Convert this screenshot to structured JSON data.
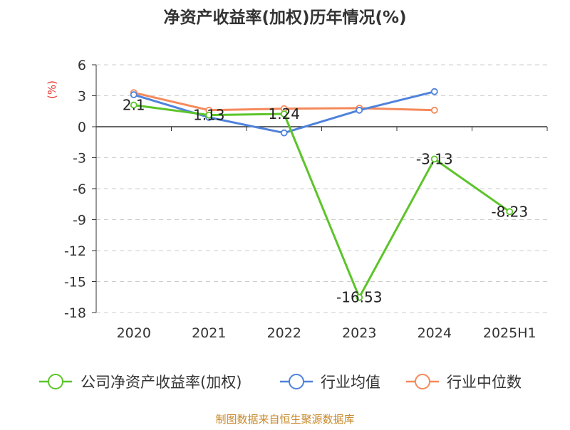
{
  "chart_data": {
    "type": "line",
    "title": "净资产收益率(加权)历年情况(%)",
    "ylabel": "(%)",
    "xlabel": "",
    "categories": [
      "2020",
      "2021",
      "2022",
      "2023",
      "2024",
      "2025H1"
    ],
    "ylim": [
      -18,
      6
    ],
    "yticks": [
      6,
      3,
      0,
      -3,
      -6,
      -9,
      -12,
      -15,
      -18
    ],
    "grid": true,
    "legend_position": "bottom",
    "series": [
      {
        "name": "公司净资产收益率(加权)",
        "color": "#5cc42a",
        "values": [
          2.1,
          1.13,
          1.24,
          -16.53,
          -3.13,
          -8.23
        ],
        "labels": [
          "2.1",
          "1.13",
          "1.24",
          "-16.53",
          "-3.13",
          "-8.23"
        ]
      },
      {
        "name": "行业均值",
        "color": "#4f82dc",
        "values": [
          3.1,
          0.9,
          -0.6,
          1.6,
          3.4,
          null
        ]
      },
      {
        "name": "行业中位数",
        "color": "#f5895a",
        "values": [
          3.3,
          1.6,
          1.75,
          1.8,
          1.6,
          null
        ]
      }
    ],
    "source": "制图数据来自恒生聚源数据库"
  }
}
